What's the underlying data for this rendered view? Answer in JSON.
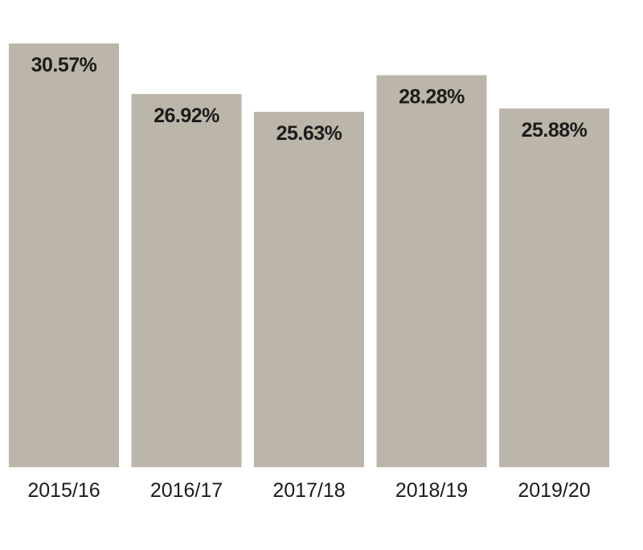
{
  "chart_data": {
    "type": "bar",
    "categories": [
      "2015/16",
      "2016/17",
      "2017/18",
      "2018/19",
      "2019/20"
    ],
    "values": [
      30.57,
      26.92,
      25.63,
      28.28,
      25.88
    ],
    "value_labels": [
      "30.57%",
      "26.92%",
      "25.63%",
      "28.28%",
      "25.88%"
    ],
    "unit": "%",
    "grid": false,
    "legend": "none",
    "bar_color": "#bcb5a9",
    "text_color": "#1c1c1c"
  }
}
